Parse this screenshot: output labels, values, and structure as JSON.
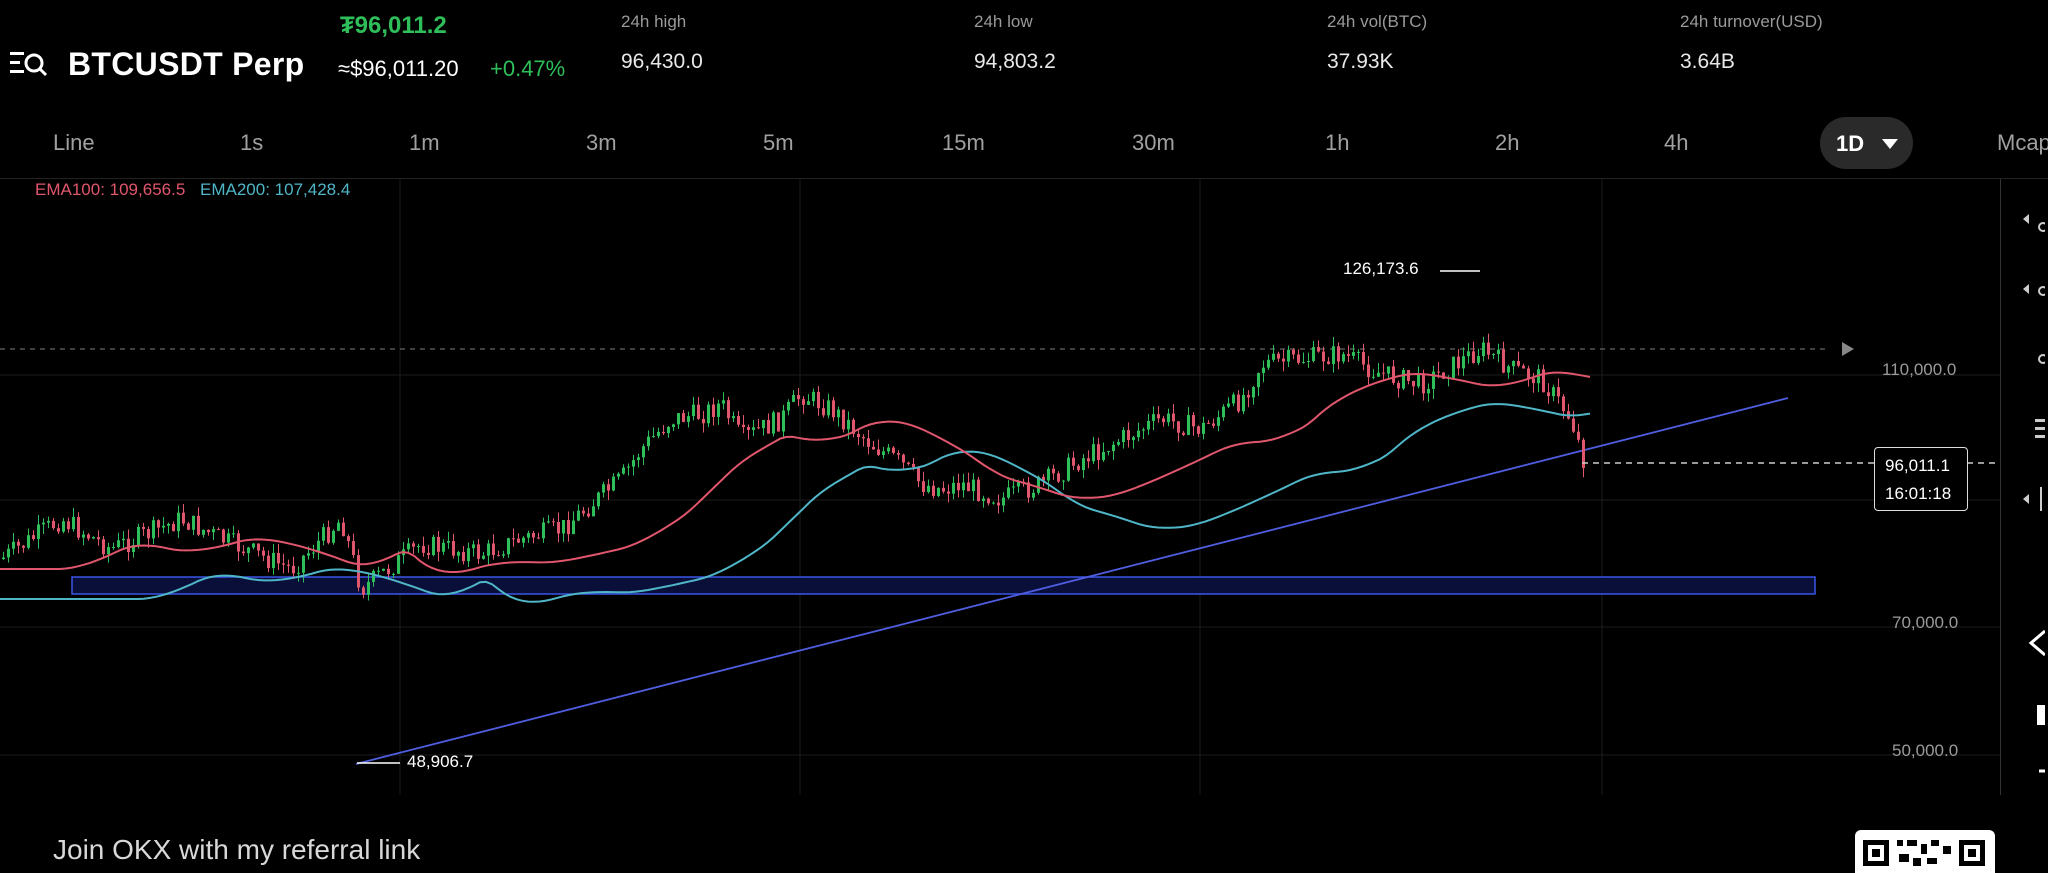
{
  "header": {
    "symbol": "BTCUSDT Perp",
    "last_price": "₮96,011.2",
    "last_price_usd": "≈$96,011.20",
    "change_pct": "+0.47%",
    "stats": [
      {
        "label": "24h high",
        "value": "96,430.0"
      },
      {
        "label": "24h low",
        "value": "94,803.2"
      },
      {
        "label": "24h vol(BTC)",
        "value": "37.93K"
      },
      {
        "label": "24h turnover(USD)",
        "value": "3.64B"
      }
    ]
  },
  "tabs": [
    "Line",
    "1s",
    "1m",
    "3m",
    "5m",
    "15m",
    "30m",
    "1h",
    "2h",
    "4h"
  ],
  "active_tab": "1D",
  "overflow_tab": "Mcap",
  "indicators": {
    "ema100": "EMA100: 109,656.5",
    "ema200": "EMA200: 107,428.4"
  },
  "chart": {
    "y_labels": [
      "110,000.0",
      "70,000.0",
      "50,000.0"
    ],
    "high_label": "126,173.6",
    "low_label": "48,906.7",
    "current_price": "96,011.1",
    "countdown": "16:01:18",
    "colors": {
      "up": "#2fbf5a",
      "down": "#e0566c",
      "ema100": "#e0566c",
      "ema200": "#4fb6c8",
      "trendline": "#4f5de0",
      "zone": "#3b56e6"
    }
  },
  "footer": {
    "referral_text": "Join OKX with my referral link"
  },
  "chart_data": {
    "type": "candlestick",
    "y_scale": "log",
    "series": [
      {
        "name": "EMA100",
        "value": 109656.5
      },
      {
        "name": "EMA200",
        "value": 107428.4
      }
    ],
    "y_ticks": [
      110000.0,
      70000.0,
      50000.0
    ],
    "marked_high": 126173.6,
    "marked_low": 48906.7,
    "last_price": 96011.1
  }
}
